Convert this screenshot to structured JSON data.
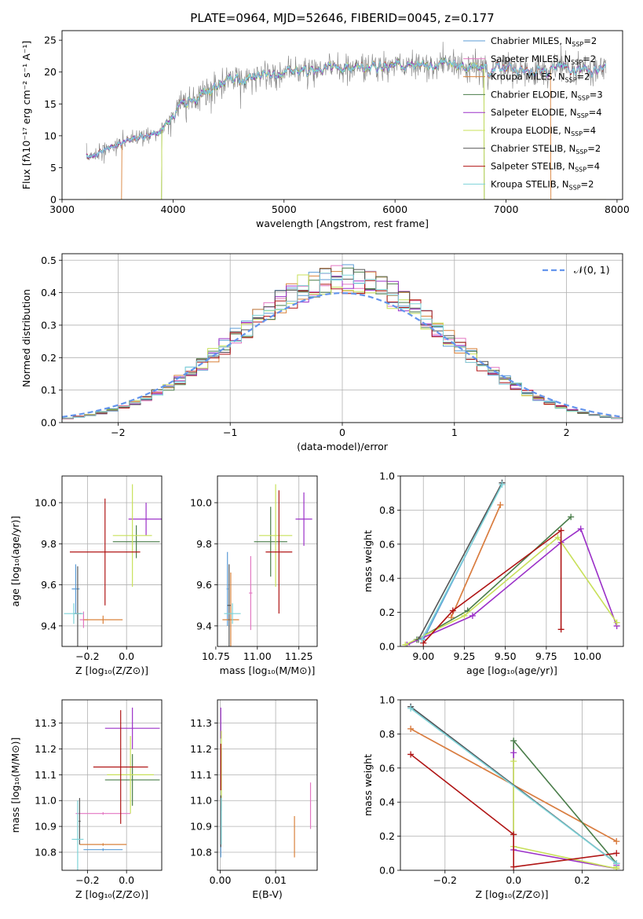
{
  "title": "PLATE=0964, MJD=52646, FIBERID=0045, z=0.177",
  "colors": {
    "Chabrier MILES": "#5b9bd5",
    "Salpeter MILES": "#e377c2",
    "Kroupa MILES": "#d9823b",
    "Chabrier ELODIE": "#4a7d4a",
    "Salpeter ELODIE": "#9b30c8",
    "Kroupa ELODIE": "#c8e05a",
    "Chabrier STELIB": "#555555",
    "Salpeter STELIB": "#b01515",
    "Kroupa STELIB": "#7ed3d8",
    "normal_curve": "#6495ed"
  },
  "chart_data": [
    {
      "id": "spectrum",
      "type": "line",
      "xlabel": "wavelength [Angstrom, rest frame]",
      "ylabel": "Flux [fλ10⁻¹⁷ erg cm⁻² s⁻¹ A⁻¹]",
      "xlim": [
        3000,
        8050
      ],
      "ylim": [
        0,
        26.5
      ],
      "xticks": [
        "3000",
        "4000",
        "5000",
        "6000",
        "7000",
        "8000"
      ],
      "yticks": [
        "0",
        "5",
        "10",
        "15",
        "20",
        "25"
      ],
      "legend_position": "right",
      "legend": [
        {
          "name": "Chabrier MILES",
          "nssp": "2"
        },
        {
          "name": "Salpeter MILES",
          "nssp": "2"
        },
        {
          "name": "Kroupa MILES",
          "nssp": "2"
        },
        {
          "name": "Chabrier ELODIE",
          "nssp": "3"
        },
        {
          "name": "Salpeter ELODIE",
          "nssp": "4"
        },
        {
          "name": "Kroupa ELODIE",
          "nssp": "4"
        },
        {
          "name": "Chabrier STELIB",
          "nssp": "2"
        },
        {
          "name": "Salpeter STELIB",
          "nssp": "4"
        },
        {
          "name": "Kroupa STELIB",
          "nssp": "2"
        }
      ],
      "continuum": {
        "x": [
          3220,
          3400,
          3600,
          3800,
          3900,
          4000,
          4100,
          4300,
          4500,
          4700,
          4900,
          5100,
          5300,
          5500,
          5800,
          6100,
          6400,
          6700,
          7000,
          7300,
          7500,
          7900
        ],
        "y": [
          6.5,
          8.0,
          9.3,
          10.2,
          11.0,
          13.5,
          15.0,
          17.0,
          18.5,
          19.3,
          19.8,
          20.2,
          20.3,
          20.6,
          21.0,
          21.0,
          21.2,
          20.8,
          20.4,
          20.3,
          20.4,
          20.5
        ]
      },
      "model_edges": {
        "Salpeter MILES": [
          3540,
          7400
        ],
        "Kroupa MILES": [
          3540,
          7400
        ],
        "Kroupa ELODIE": [
          3900,
          6800
        ],
        "Chabrier ELODIE": [
          3900,
          6800
        ]
      }
    },
    {
      "id": "residuals",
      "type": "histogram",
      "xlabel": "(data-model)/error",
      "ylabel": "Normed distribution",
      "xlim": [
        -2.5,
        2.5
      ],
      "ylim": [
        0,
        0.52
      ],
      "xticks": [
        "−2",
        "−1",
        "0",
        "1",
        "2"
      ],
      "yticks": [
        "0.0",
        "0.1",
        "0.2",
        "0.3",
        "0.4",
        "0.5"
      ],
      "legend_position": "top-right",
      "legend_label": "𝒩(0, 1)",
      "bin_width": 0.1
    },
    {
      "id": "age_vs_Z",
      "type": "errorbar",
      "xlabel": "Z [log₁₀(Z/Z⊙)]",
      "ylabel": "age  [log₁₀(age/yr)]",
      "xlim": [
        -0.33,
        0.18
      ],
      "ylim": [
        9.3,
        10.13
      ],
      "xticks": [
        "−0.2",
        "0.0"
      ],
      "yticks": [
        "9.4",
        "9.6",
        "9.8",
        "10.0"
      ],
      "points": [
        {
          "m": "Chabrier MILES",
          "x": -0.26,
          "y": 9.58,
          "xe": 0.02,
          "ye": 0.12
        },
        {
          "m": "Salpeter MILES",
          "x": -0.22,
          "y": 9.43,
          "xe": 0.02,
          "ye": 0.04
        },
        {
          "m": "Kroupa MILES",
          "x": -0.12,
          "y": 9.43,
          "xe": 0.1,
          "ye": 0.02
        },
        {
          "m": "Chabrier ELODIE",
          "x": 0.05,
          "y": 9.81,
          "xe": 0.12,
          "ye": 0.08
        },
        {
          "m": "Salpeter ELODIE",
          "x": 0.1,
          "y": 9.92,
          "xe": 0.09,
          "ye": 0.08
        },
        {
          "m": "Kroupa ELODIE",
          "x": 0.03,
          "y": 9.84,
          "xe": 0.1,
          "ye": 0.25
        },
        {
          "m": "Chabrier STELIB",
          "x": -0.25,
          "y": 9.46,
          "xe": 0.02,
          "ye": 0.23
        },
        {
          "m": "Salpeter STELIB",
          "x": -0.11,
          "y": 9.76,
          "xe": 0.18,
          "ye": 0.26
        },
        {
          "m": "Kroupa STELIB",
          "x": -0.27,
          "y": 9.46,
          "xe": 0.05,
          "ye": 0.05
        }
      ]
    },
    {
      "id": "age_vs_mass",
      "type": "errorbar",
      "xlabel": "mass [log₁₀(M/M⊙)]",
      "ylabel": "",
      "xlim": [
        10.76,
        11.36
      ],
      "ylim": [
        9.3,
        10.13
      ],
      "xticks": [
        "10.75",
        "11.00",
        "11.25"
      ],
      "yticks": [
        "9.4",
        "9.6",
        "9.8",
        "10.0"
      ],
      "points": [
        {
          "m": "Chabrier MILES",
          "x": 10.82,
          "y": 9.58,
          "xe": 0.005,
          "ye": 0.18
        },
        {
          "m": "Salpeter MILES",
          "x": 10.96,
          "y": 9.56,
          "xe": 0.01,
          "ye": 0.18
        },
        {
          "m": "Kroupa MILES",
          "x": 10.84,
          "y": 9.43,
          "xe": 0.05,
          "ye": 0.23
        },
        {
          "m": "Chabrier ELODIE",
          "x": 11.08,
          "y": 9.81,
          "xe": 0.1,
          "ye": 0.17
        },
        {
          "m": "Salpeter ELODIE",
          "x": 11.28,
          "y": 9.92,
          "xe": 0.05,
          "ye": 0.13
        },
        {
          "m": "Kroupa ELODIE",
          "x": 11.11,
          "y": 9.84,
          "xe": 0.1,
          "ye": 0.25
        },
        {
          "m": "Chabrier STELIB",
          "x": 10.83,
          "y": 9.5,
          "xe": 0.01,
          "ye": 0.2
        },
        {
          "m": "Salpeter STELIB",
          "x": 11.13,
          "y": 9.76,
          "xe": 0.08,
          "ye": 0.3
        },
        {
          "m": "Kroupa STELIB",
          "x": 10.85,
          "y": 9.46,
          "xe": 0.05,
          "ye": 0.05
        }
      ]
    },
    {
      "id": "weight_vs_age",
      "type": "line",
      "xlabel": "age  [log₁₀(age/yr)]",
      "ylabel": "mass weight",
      "xlim": [
        8.86,
        10.22
      ],
      "ylim": [
        0,
        1
      ],
      "xticks": [
        "9.00",
        "9.25",
        "9.50",
        "9.75",
        "10.00"
      ],
      "yticks": [
        "0.0",
        "0.2",
        "0.4",
        "0.6",
        "0.8",
        "1.0"
      ],
      "series": [
        {
          "m": "Chabrier MILES",
          "x": [
            9.0,
            9.48
          ],
          "y": [
            0.04,
            0.96
          ]
        },
        {
          "m": "Salpeter MILES",
          "x": [
            9.17,
            9.47
          ],
          "y": [
            0.17,
            0.83
          ]
        },
        {
          "m": "Kroupa MILES",
          "x": [
            9.17,
            9.47
          ],
          "y": [
            0.17,
            0.83
          ]
        },
        {
          "m": "Chabrier ELODIE",
          "x": [
            8.96,
            9.27,
            9.9
          ],
          "y": [
            0.04,
            0.21,
            0.76
          ]
        },
        {
          "m": "Salpeter ELODIE",
          "x": [
            8.9,
            9.3,
            9.84,
            9.96,
            10.18
          ],
          "y": [
            0.01,
            0.18,
            0.61,
            0.69,
            0.12
          ]
        },
        {
          "m": "Kroupa ELODIE",
          "x": [
            8.89,
            9.25,
            9.82,
            10.18
          ],
          "y": [
            0.01,
            0.18,
            0.64,
            0.14
          ]
        },
        {
          "m": "Chabrier STELIB",
          "x": [
            8.97,
            9.48
          ],
          "y": [
            0.04,
            0.96
          ]
        },
        {
          "m": "Salpeter STELIB",
          "x": [
            9.0,
            9.18,
            9.84,
            9.84
          ],
          "y": [
            0.02,
            0.21,
            0.68,
            0.1
          ]
        },
        {
          "m": "Kroupa STELIB",
          "x": [
            8.99,
            9.48
          ],
          "y": [
            0.04,
            0.95
          ]
        }
      ]
    },
    {
      "id": "mass_vs_Z",
      "type": "errorbar",
      "xlabel": "Z [log₁₀(Z/Z⊙)]",
      "ylabel": "mass [log₁₀(M/M⊙)]",
      "xlim": [
        -0.33,
        0.18
      ],
      "ylim": [
        10.73,
        11.39
      ],
      "xticks": [
        "−0.2",
        "0.0"
      ],
      "yticks": [
        "10.8",
        "10.9",
        "11.0",
        "11.1",
        "11.2",
        "11.3"
      ],
      "points": [
        {
          "m": "Chabrier MILES",
          "x": -0.12,
          "y": 10.81,
          "xe": 0.1,
          "ye": 0.005
        },
        {
          "m": "Salpeter MILES",
          "x": -0.12,
          "y": 10.95,
          "xe": 0.14,
          "ye": 0.005
        },
        {
          "m": "Kroupa MILES",
          "x": -0.12,
          "y": 10.83,
          "xe": 0.12,
          "ye": 0.005
        },
        {
          "m": "Chabrier ELODIE",
          "x": 0.03,
          "y": 11.08,
          "xe": 0.14,
          "ye": 0.1
        },
        {
          "m": "Salpeter ELODIE",
          "x": 0.03,
          "y": 11.28,
          "xe": 0.14,
          "ye": 0.08
        },
        {
          "m": "Kroupa ELODIE",
          "x": 0.02,
          "y": 11.1,
          "xe": 0.12,
          "ye": 0.15
        },
        {
          "m": "Chabrier STELIB",
          "x": -0.24,
          "y": 10.92,
          "xe": 0.005,
          "ye": 0.09
        },
        {
          "m": "Salpeter STELIB",
          "x": -0.03,
          "y": 11.13,
          "xe": 0.14,
          "ye": 0.22
        },
        {
          "m": "Kroupa STELIB",
          "x": -0.25,
          "y": 10.85,
          "xe": 0.03,
          "ye": 0.15
        }
      ]
    },
    {
      "id": "mass_vs_EBV",
      "type": "errorbar",
      "xlabel": "E(B-V)",
      "ylabel": "",
      "xlim": [
        -0.0005,
        0.0175
      ],
      "ylim": [
        10.73,
        11.39
      ],
      "xticks": [
        "0.00",
        "0.01"
      ],
      "yticks": [
        "10.8",
        "10.9",
        "11.0",
        "11.1",
        "11.2",
        "11.3"
      ],
      "points": [
        {
          "m": "Chabrier MILES",
          "x": 0.0001,
          "y": 10.88,
          "xe": 0,
          "ye": 0.1
        },
        {
          "m": "Salpeter MILES",
          "x": 0.0163,
          "y": 10.98,
          "xe": 0,
          "ye": 0.09
        },
        {
          "m": "Kroupa MILES",
          "x": 0.0134,
          "y": 10.86,
          "xe": 0,
          "ye": 0.08
        },
        {
          "m": "Chabrier ELODIE",
          "x": 0.0002,
          "y": 11.08,
          "xe": 0,
          "ye": 0.12
        },
        {
          "m": "Salpeter ELODIE",
          "x": 0.0001,
          "y": 11.3,
          "xe": 0,
          "ye": 0.06
        },
        {
          "m": "Kroupa ELODIE",
          "x": 0.0002,
          "y": 11.12,
          "xe": 0,
          "ye": 0.15
        },
        {
          "m": "Chabrier STELIB",
          "x": 0.0001,
          "y": 10.92,
          "xe": 0,
          "ye": 0.1
        },
        {
          "m": "Salpeter STELIB",
          "x": 0.0001,
          "y": 11.13,
          "xe": 0,
          "ye": 0.09
        },
        {
          "m": "Kroupa STELIB",
          "x": 0.0002,
          "y": 10.92,
          "xe": 0,
          "ye": 0.09
        }
      ]
    },
    {
      "id": "weight_vs_Z",
      "type": "line",
      "xlabel": "Z [log₁₀(Z/Z⊙)]",
      "ylabel": "mass weight",
      "xlim": [
        -0.33,
        0.32
      ],
      "ylim": [
        0,
        1
      ],
      "xticks": [
        "−0.2",
        "0.0",
        "0.2"
      ],
      "yticks": [
        "0.0",
        "0.2",
        "0.4",
        "0.6",
        "0.8",
        "1.0"
      ],
      "series": [
        {
          "m": "Chabrier MILES",
          "x": [
            -0.3,
            0.3
          ],
          "y": [
            0.96,
            0.04
          ]
        },
        {
          "m": "Salpeter MILES",
          "x": [
            -0.3,
            0.3
          ],
          "y": [
            0.83,
            0.17
          ]
        },
        {
          "m": "Kroupa MILES",
          "x": [
            -0.3,
            0.3
          ],
          "y": [
            0.83,
            0.17
          ]
        },
        {
          "m": "Chabrier ELODIE",
          "x": [
            0.0,
            0.0,
            0.3
          ],
          "y": [
            0.21,
            0.76,
            0.04
          ]
        },
        {
          "m": "Salpeter ELODIE",
          "x": [
            0.0,
            0.0,
            0.3,
            0.3
          ],
          "y": [
            0.69,
            0.12,
            0.01,
            0.03
          ]
        },
        {
          "m": "Kroupa ELODIE",
          "x": [
            0.0,
            0.0,
            0.3,
            0.3
          ],
          "y": [
            0.64,
            0.14,
            0.01,
            0.02
          ]
        },
        {
          "m": "Chabrier STELIB",
          "x": [
            -0.3,
            0.3
          ],
          "y": [
            0.96,
            0.04
          ]
        },
        {
          "m": "Salpeter STELIB",
          "x": [
            -0.3,
            0.0,
            0.0,
            0.3
          ],
          "y": [
            0.68,
            0.21,
            0.02,
            0.1
          ]
        },
        {
          "m": "Kroupa STELIB",
          "x": [
            -0.3,
            0.3
          ],
          "y": [
            0.95,
            0.04
          ]
        }
      ]
    }
  ]
}
